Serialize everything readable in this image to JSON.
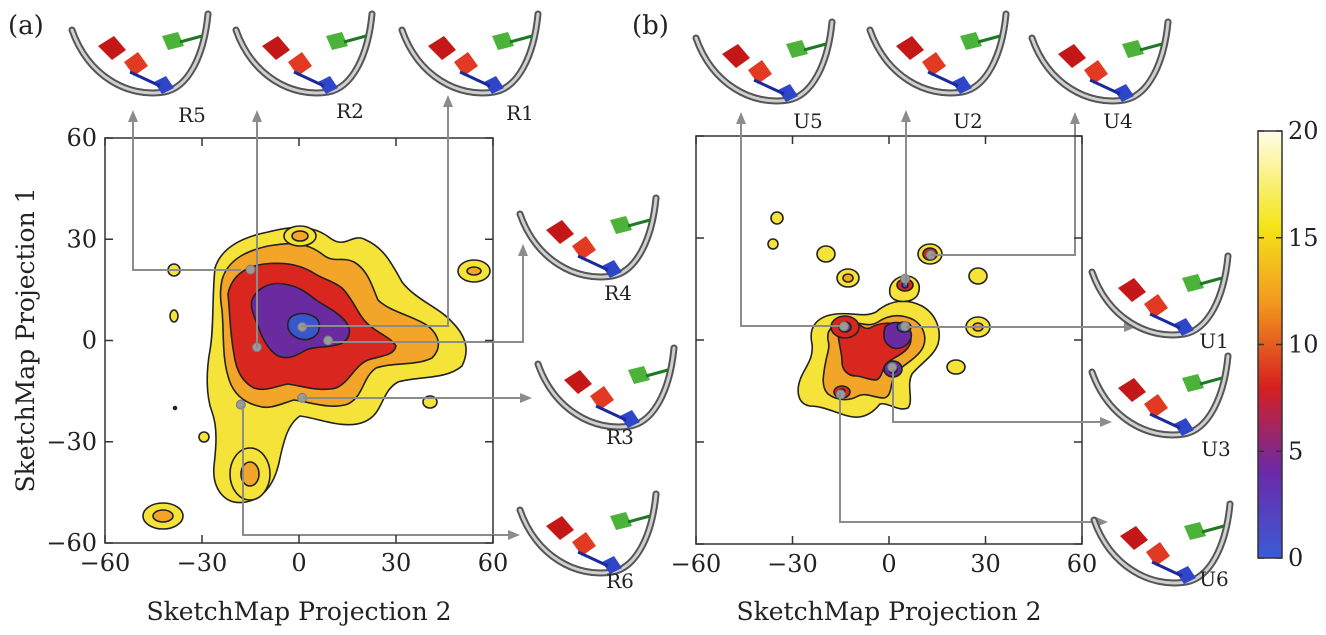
{
  "chart_data": [
    {
      "type": "heatmap",
      "panel": "(a)",
      "xlabel": "SketchMap Projection 2",
      "ylabel": "SketchMap Projection 1",
      "xlim": [
        -60,
        60
      ],
      "ylim": [
        -60,
        60
      ],
      "xticks": [
        "−60",
        "−30",
        "0",
        "30",
        "60"
      ],
      "yticks": [
        "−60",
        "−30",
        "0",
        "30",
        "60"
      ],
      "structures": [
        {
          "label": "R5",
          "x": -15,
          "y": 21
        },
        {
          "label": "R2",
          "x": -13,
          "y": -2
        },
        {
          "label": "R1",
          "x": 1,
          "y": 4
        },
        {
          "label": "R4",
          "x": 9,
          "y": 0
        },
        {
          "label": "R3",
          "x": 1,
          "y": -17
        },
        {
          "label": "R6",
          "x": -18,
          "y": -19
        }
      ]
    },
    {
      "type": "heatmap",
      "panel": "(b)",
      "xlabel": "SketchMap Projection 2",
      "ylabel": "",
      "xlim": [
        -60,
        60
      ],
      "ylim": [
        -60,
        60
      ],
      "xticks": [
        "−60",
        "−30",
        "0",
        "30",
        "60"
      ],
      "yticks": [],
      "structures": [
        {
          "label": "U5",
          "x": -14,
          "y": 4
        },
        {
          "label": "U2",
          "x": 5,
          "y": 18
        },
        {
          "label": "U4",
          "x": 13,
          "y": 25
        },
        {
          "label": "U1",
          "x": 5,
          "y": 4
        },
        {
          "label": "U3",
          "x": 1,
          "y": -8
        },
        {
          "label": "U6",
          "x": -15,
          "y": -16
        }
      ]
    }
  ],
  "colorbar": {
    "ticks": [
      "0",
      "5",
      "10",
      "15",
      "20"
    ],
    "min": 0,
    "max": 20,
    "colors": [
      "#3b5bd6",
      "#6a2aa8",
      "#d62020",
      "#f39a1e",
      "#f5e51a",
      "#fffde8"
    ]
  }
}
